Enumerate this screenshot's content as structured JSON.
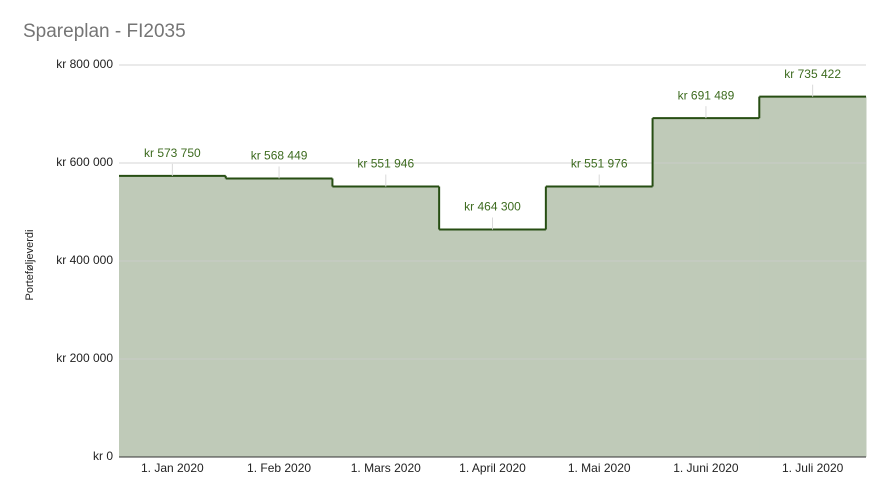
{
  "chart_data": {
    "type": "stepped-area",
    "title": "Spareplan - FI2035",
    "y_label": "Porteføljeverdi",
    "categories": [
      "1. Jan 2020",
      "1. Feb 2020",
      "1. Mars 2020",
      "1. April 2020",
      "1. Mai 2020",
      "1. Juni 2020",
      "1. Juli 2020"
    ],
    "values": [
      573750,
      568449,
      551946,
      464300,
      551976,
      691489,
      735422
    ],
    "value_labels": [
      "kr  573 750",
      "kr  568 449",
      "kr  551 946",
      "kr  464 300",
      "kr  551 976",
      "kr  691 489",
      "kr  735 422"
    ],
    "color": "#274e13",
    "fill": "#bfcab8",
    "ylim": [
      0,
      800000
    ],
    "yticks": [
      {
        "value": 0,
        "label": "kr  0"
      },
      {
        "value": 200000,
        "label": "kr  200 000"
      },
      {
        "value": 400000,
        "label": "kr  400 000"
      },
      {
        "value": 600000,
        "label": "kr  600 000"
      },
      {
        "value": 800000,
        "label": "kr  800 000"
      }
    ],
    "grid": true
  }
}
